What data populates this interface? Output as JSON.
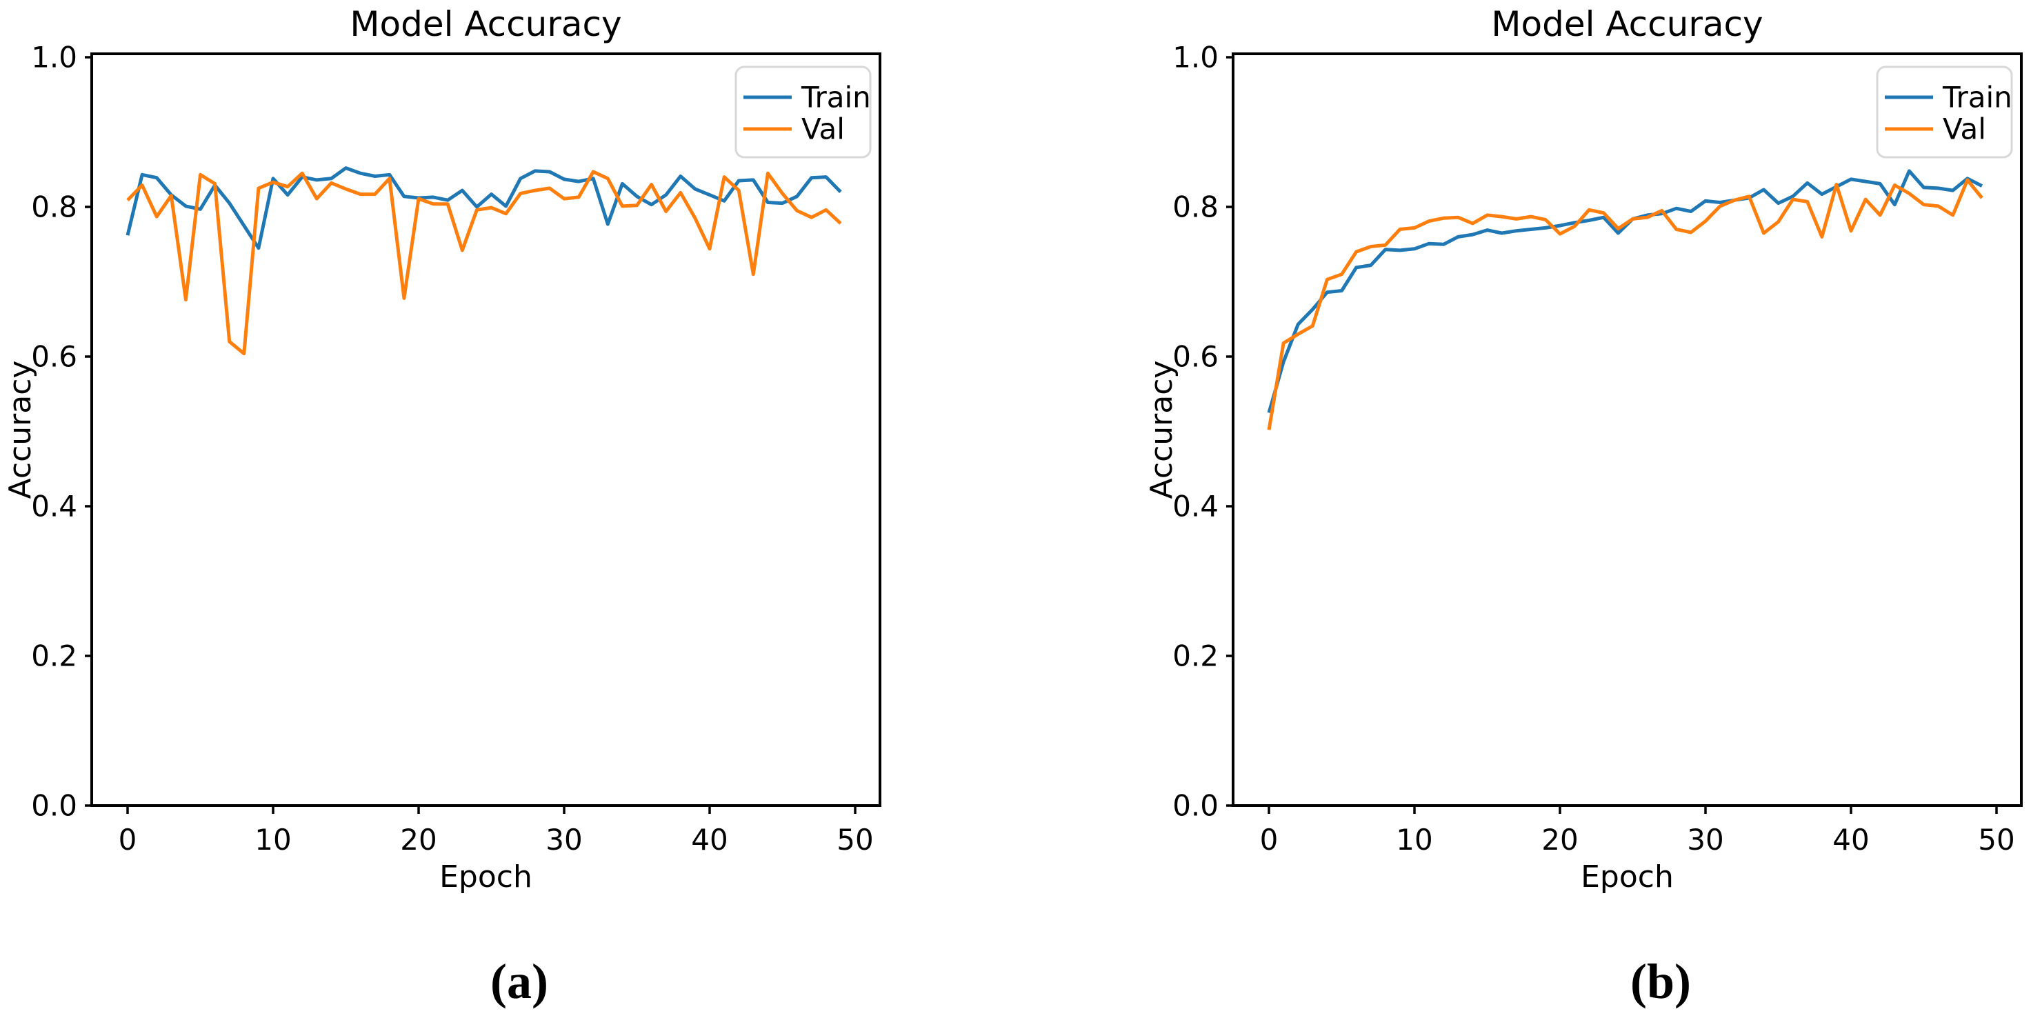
{
  "figure": {
    "background": "#ffffff",
    "captions": {
      "a": "(a)",
      "b": "(b)"
    }
  },
  "chart_data": [
    {
      "type": "line",
      "panel_label": "(a)",
      "title": "Model Accuracy",
      "xlabel": "Epoch",
      "ylabel": "Accuracy",
      "x": [
        0,
        1,
        2,
        3,
        4,
        5,
        6,
        7,
        8,
        9,
        10,
        11,
        12,
        13,
        14,
        15,
        16,
        17,
        18,
        19,
        20,
        21,
        22,
        23,
        24,
        25,
        26,
        27,
        28,
        29,
        30,
        31,
        32,
        33,
        34,
        35,
        36,
        37,
        38,
        39,
        40,
        41,
        42,
        43,
        44,
        45,
        46,
        47,
        48,
        49
      ],
      "xticks": [
        0,
        10,
        20,
        30,
        40,
        50
      ],
      "yticks": [
        0.0,
        0.2,
        0.4,
        0.6,
        0.8,
        1.0
      ],
      "ylim": [
        0.0,
        1.0
      ],
      "grid": false,
      "legend": {
        "position": "upper right",
        "entries": [
          "Train",
          "Val"
        ]
      },
      "series": [
        {
          "name": "Train",
          "color": "#1f77b4",
          "values": [
            0.762,
            0.843,
            0.839,
            0.816,
            0.801,
            0.797,
            0.829,
            0.805,
            0.775,
            0.745,
            0.838,
            0.816,
            0.84,
            0.836,
            0.838,
            0.852,
            0.845,
            0.841,
            0.843,
            0.814,
            0.812,
            0.813,
            0.809,
            0.822,
            0.8,
            0.817,
            0.801,
            0.838,
            0.848,
            0.847,
            0.837,
            0.834,
            0.838,
            0.777,
            0.831,
            0.814,
            0.803,
            0.816,
            0.841,
            0.824,
            0.816,
            0.808,
            0.835,
            0.836,
            0.806,
            0.805,
            0.814,
            0.839,
            0.84,
            0.82
          ]
        },
        {
          "name": "Val",
          "color": "#ff7f0e",
          "values": [
            0.809,
            0.829,
            0.787,
            0.815,
            0.676,
            0.843,
            0.831,
            0.62,
            0.604,
            0.825,
            0.833,
            0.827,
            0.845,
            0.811,
            0.832,
            0.824,
            0.817,
            0.817,
            0.838,
            0.678,
            0.811,
            0.804,
            0.804,
            0.742,
            0.796,
            0.799,
            0.791,
            0.818,
            0.822,
            0.825,
            0.811,
            0.813,
            0.847,
            0.838,
            0.801,
            0.802,
            0.83,
            0.794,
            0.819,
            0.785,
            0.744,
            0.84,
            0.822,
            0.71,
            0.845,
            0.818,
            0.795,
            0.786,
            0.796,
            0.778
          ]
        }
      ]
    },
    {
      "type": "line",
      "panel_label": "(b)",
      "title": "Model Accuracy",
      "xlabel": "Epoch",
      "ylabel": "Accuracy",
      "x": [
        0,
        1,
        2,
        3,
        4,
        5,
        6,
        7,
        8,
        9,
        10,
        11,
        12,
        13,
        14,
        15,
        16,
        17,
        18,
        19,
        20,
        21,
        22,
        23,
        24,
        25,
        26,
        27,
        28,
        29,
        30,
        31,
        32,
        33,
        34,
        35,
        36,
        37,
        38,
        39,
        40,
        41,
        42,
        43,
        44,
        45,
        46,
        47,
        48,
        49
      ],
      "xticks": [
        0,
        10,
        20,
        30,
        40,
        50
      ],
      "yticks": [
        0.0,
        0.2,
        0.4,
        0.6,
        0.8,
        1.0
      ],
      "ylim": [
        0.0,
        1.0
      ],
      "grid": false,
      "legend": {
        "position": "upper right",
        "entries": [
          "Train",
          "Val"
        ]
      },
      "series": [
        {
          "name": "Train",
          "color": "#1f77b4",
          "values": [
            0.525,
            0.593,
            0.643,
            0.663,
            0.686,
            0.688,
            0.719,
            0.722,
            0.743,
            0.742,
            0.744,
            0.751,
            0.75,
            0.76,
            0.763,
            0.769,
            0.765,
            0.768,
            0.77,
            0.772,
            0.775,
            0.779,
            0.782,
            0.786,
            0.765,
            0.784,
            0.789,
            0.791,
            0.798,
            0.794,
            0.808,
            0.806,
            0.809,
            0.812,
            0.823,
            0.805,
            0.814,
            0.832,
            0.817,
            0.827,
            0.837,
            0.834,
            0.831,
            0.803,
            0.848,
            0.826,
            0.825,
            0.822,
            0.838,
            0.828
          ]
        },
        {
          "name": "Val",
          "color": "#ff7f0e",
          "values": [
            0.502,
            0.618,
            0.63,
            0.641,
            0.703,
            0.71,
            0.74,
            0.747,
            0.749,
            0.77,
            0.772,
            0.781,
            0.785,
            0.786,
            0.778,
            0.789,
            0.787,
            0.784,
            0.787,
            0.783,
            0.764,
            0.774,
            0.796,
            0.792,
            0.771,
            0.784,
            0.786,
            0.795,
            0.77,
            0.766,
            0.781,
            0.801,
            0.809,
            0.814,
            0.765,
            0.78,
            0.81,
            0.807,
            0.76,
            0.83,
            0.768,
            0.81,
            0.789,
            0.829,
            0.818,
            0.803,
            0.801,
            0.789,
            0.836,
            0.812
          ]
        }
      ]
    }
  ]
}
